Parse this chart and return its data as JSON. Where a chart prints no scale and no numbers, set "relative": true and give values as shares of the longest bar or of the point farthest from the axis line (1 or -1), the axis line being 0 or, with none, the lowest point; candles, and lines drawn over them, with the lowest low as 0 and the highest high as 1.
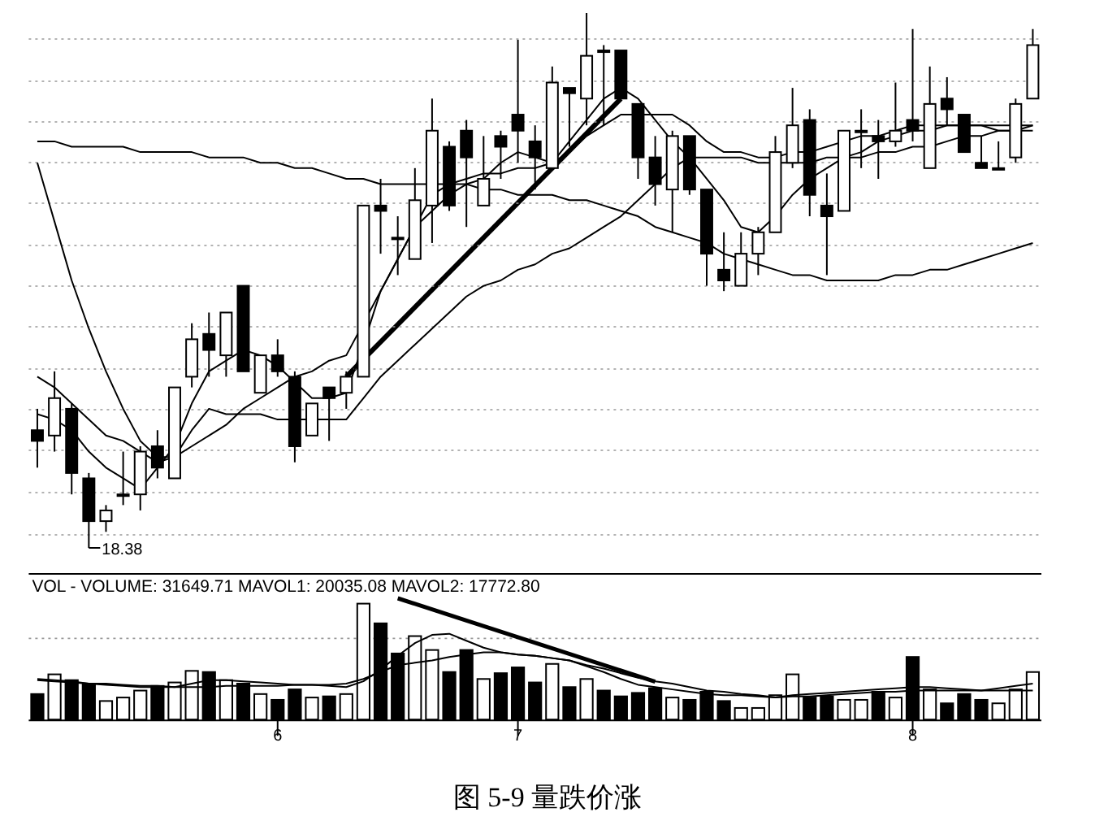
{
  "chart_data": [
    {
      "type": "candlestick",
      "relative": true,
      "grid": "y",
      "tick_labels": false,
      "categories": [
        null,
        null,
        null,
        null,
        null,
        null,
        null,
        null,
        null,
        null,
        null,
        null,
        null,
        null,
        null,
        null,
        null,
        null,
        null,
        null,
        null,
        null,
        null,
        null,
        null,
        null,
        null,
        null,
        null,
        null,
        null,
        null,
        null,
        null,
        null,
        null,
        null,
        null,
        null,
        null,
        null,
        null,
        null,
        null,
        null,
        null,
        null,
        null,
        null,
        null,
        null,
        null,
        null,
        null,
        null,
        null,
        null,
        null,
        null
      ],
      "ohlc": [
        [
          0.22,
          0.26,
          0.15,
          0.2
        ],
        [
          0.21,
          0.33,
          0.18,
          0.28
        ],
        [
          0.26,
          0.27,
          0.1,
          0.14
        ],
        [
          0.13,
          0.14,
          0,
          0.05
        ],
        [
          0.05,
          0.08,
          0.03,
          0.07
        ],
        [
          0.1,
          0.18,
          0.08,
          0.1
        ],
        [
          0.1,
          0.19,
          0.07,
          0.18
        ],
        [
          0.19,
          0.22,
          0.13,
          0.15
        ],
        [
          0.13,
          0.3,
          0.13,
          0.3
        ],
        [
          0.32,
          0.42,
          0.3,
          0.39
        ],
        [
          0.4,
          0.44,
          0.32,
          0.37
        ],
        [
          0.36,
          0.44,
          0.32,
          0.44
        ],
        [
          0.49,
          0.49,
          0.33,
          0.33
        ],
        [
          0.29,
          0.36,
          0.29,
          0.36
        ],
        [
          0.36,
          0.39,
          0.32,
          0.33
        ],
        [
          0.32,
          0.33,
          0.16,
          0.19
        ],
        [
          0.21,
          0.27,
          0.21,
          0.27
        ],
        [
          0.3,
          0.3,
          0.2,
          0.28
        ],
        [
          0.29,
          0.33,
          0.26,
          0.32
        ],
        [
          0.32,
          0.64,
          0.32,
          0.64
        ],
        [
          0.64,
          0.69,
          0.55,
          0.63
        ],
        [
          0.58,
          0.62,
          0.51,
          0.58
        ],
        [
          0.54,
          0.71,
          0.54,
          0.65
        ],
        [
          0.64,
          0.84,
          0.57,
          0.78
        ],
        [
          0.75,
          0.76,
          0.63,
          0.64
        ],
        [
          0.78,
          0.8,
          0.6,
          0.73
        ],
        [
          0.64,
          0.77,
          0.64,
          0.69
        ],
        [
          0.77,
          0.78,
          0.69,
          0.75
        ],
        [
          0.81,
          0.95,
          0.72,
          0.78
        ],
        [
          0.76,
          0.79,
          0.67,
          0.73
        ],
        [
          0.71,
          0.9,
          0.71,
          0.87
        ],
        [
          0.86,
          0.86,
          0.75,
          0.85
        ],
        [
          0.84,
          1,
          0.79,
          0.92
        ],
        [
          0.93,
          0.94,
          0.79,
          0.93
        ],
        [
          0.93,
          0.93,
          0.84,
          0.84
        ],
        [
          0.83,
          0.83,
          0.69,
          0.73
        ],
        [
          0.73,
          0.77,
          0.64,
          0.68
        ],
        [
          0.67,
          0.78,
          0.59,
          0.77
        ],
        [
          0.77,
          0.77,
          0.66,
          0.67
        ],
        [
          0.67,
          0.67,
          0.49,
          0.55
        ],
        [
          0.52,
          0.59,
          0.48,
          0.5
        ],
        [
          0.49,
          0.59,
          0.49,
          0.55
        ],
        [
          0.55,
          0.6,
          0.51,
          0.59
        ],
        [
          0.59,
          0.77,
          0.59,
          0.74
        ],
        [
          0.72,
          0.86,
          0.71,
          0.79
        ],
        [
          0.8,
          0.82,
          0.62,
          0.66
        ],
        [
          0.64,
          0.7,
          0.51,
          0.62
        ],
        [
          0.63,
          0.78,
          0.63,
          0.78
        ],
        [
          0.78,
          0.82,
          0.71,
          0.78
        ],
        [
          0.77,
          0.8,
          0.69,
          0.76
        ],
        [
          0.76,
          0.87,
          0.75,
          0.78
        ],
        [
          0.8,
          0.97,
          0.76,
          0.78
        ],
        [
          0.71,
          0.9,
          0.71,
          0.83
        ],
        [
          0.84,
          0.88,
          0.79,
          0.82
        ],
        [
          0.81,
          0.81,
          0.74,
          0.74
        ],
        [
          0.72,
          0.77,
          0.71,
          0.71
        ],
        [
          0.71,
          0.76,
          0.71,
          0.71
        ],
        [
          0.73,
          0.84,
          0.72,
          0.83
        ],
        [
          0.84,
          0.97,
          0.84,
          0.94
        ]
      ],
      "series": [
        {
          "type": "line",
          "color": "#000000",
          "values": [
            0.76,
            0.76,
            0.75,
            0.75,
            0.75,
            0.75,
            0.74,
            0.74,
            0.74,
            0.74,
            0.73,
            0.73,
            0.73,
            0.72,
            0.72,
            0.71,
            0.71,
            0.7,
            0.69,
            0.69,
            0.68,
            0.68,
            0.68,
            0.68,
            0.68,
            0.68,
            0.67,
            0.67,
            0.66,
            0.66,
            0.66,
            0.65,
            0.65,
            0.64,
            0.63,
            0.62,
            0.6,
            0.59,
            0.58,
            0.57,
            0.55,
            0.54,
            0.53,
            0.52,
            0.51,
            0.51,
            0.5,
            0.5,
            0.5,
            0.5,
            0.51,
            0.51,
            0.52,
            0.52,
            0.53,
            0.54,
            0.55,
            0.56,
            0.57
          ]
        },
        {
          "type": "line",
          "color": "#000000",
          "values": [
            0.72,
            0.61,
            0.5,
            0.41,
            0.33,
            0.26,
            0.2,
            0.17,
            0.17,
            0.22,
            0.26,
            0.25,
            0.25,
            0.25,
            0.24,
            0.24,
            0.24,
            0.24,
            0.24,
            0.28,
            0.32,
            0.35,
            0.38,
            0.41,
            0.44,
            0.47,
            0.49,
            0.5,
            0.52,
            0.53,
            0.55,
            0.56,
            0.58,
            0.6,
            0.62,
            0.65,
            0.68,
            0.71,
            0.73,
            0.73,
            0.73,
            0.73,
            0.72,
            0.72,
            0.72,
            0.72,
            0.73,
            0.73,
            0.73,
            0.74,
            0.74,
            0.75,
            0.75,
            0.76,
            0.77,
            0.77,
            0.78,
            0.78,
            0.79
          ]
        },
        {
          "type": "line",
          "color": "#000000",
          "values": [
            0.32,
            0.3,
            0.27,
            0.24,
            0.21,
            0.2,
            0.18,
            0.16,
            0.17,
            0.19,
            0.21,
            0.23,
            0.26,
            0.28,
            0.3,
            0.32,
            0.33,
            0.35,
            0.36,
            0.42,
            0.48,
            0.54,
            0.6,
            0.66,
            0.68,
            0.69,
            0.7,
            0.7,
            0.71,
            0.71,
            0.72,
            0.74,
            0.77,
            0.79,
            0.81,
            0.81,
            0.81,
            0.81,
            0.79,
            0.76,
            0.74,
            0.74,
            0.73,
            0.73,
            0.74,
            0.74,
            0.75,
            0.76,
            0.77,
            0.77,
            0.78,
            0.79,
            0.79,
            0.79,
            0.79,
            0.79,
            0.79,
            0.79,
            0.79
          ]
        },
        {
          "type": "line",
          "color": "#000000",
          "values": [
            0.25,
            0.24,
            0.22,
            0.18,
            0.15,
            0.13,
            0.11,
            0.15,
            0.19,
            0.27,
            0.33,
            0.35,
            0.37,
            0.36,
            0.34,
            0.31,
            0.28,
            0.28,
            0.29,
            0.38,
            0.48,
            0.54,
            0.6,
            0.63,
            0.66,
            0.68,
            0.69,
            0.72,
            0.74,
            0.73,
            0.72,
            0.76,
            0.8,
            0.84,
            0.86,
            0.84,
            0.8,
            0.76,
            0.73,
            0.69,
            0.65,
            0.6,
            0.59,
            0.62,
            0.66,
            0.69,
            0.71,
            0.73,
            0.74,
            0.76,
            0.77,
            0.78,
            0.78,
            0.79,
            0.79,
            0.79,
            0.78,
            0.78,
            0.78
          ]
        }
      ],
      "annotations": [
        "18.38"
      ]
    },
    {
      "type": "bar",
      "relative": true,
      "tick_labels": "x",
      "ref_lines": [
        {
          "axis": "y",
          "value": 0.7,
          "color": "#999999",
          "line_style": "dotted"
        }
      ],
      "title": "VOL -   VOLUME: 31649.71  MAVOL1: 20035.08  MAVOL2: 17772.80",
      "categories": [
        null,
        null,
        null,
        null,
        null,
        null,
        null,
        null,
        null,
        null,
        null,
        null,
        null,
        null,
        "6",
        null,
        null,
        null,
        null,
        null,
        null,
        null,
        null,
        null,
        null,
        null,
        null,
        null,
        "7",
        null,
        null,
        null,
        null,
        null,
        null,
        null,
        null,
        null,
        null,
        null,
        null,
        null,
        null,
        null,
        null,
        null,
        null,
        null,
        null,
        null,
        null,
        "8",
        null,
        null,
        null,
        null,
        null,
        null,
        null
      ],
      "series": [
        {
          "type": "bar",
          "values": [
            0.22,
            0.39,
            0.34,
            0.31,
            0.16,
            0.19,
            0.25,
            0.29,
            0.32,
            0.42,
            0.41,
            0.34,
            0.31,
            0.22,
            0.17,
            0.26,
            0.19,
            0.2,
            0.22,
            1,
            0.83,
            0.57,
            0.72,
            0.6,
            0.41,
            0.6,
            0.35,
            0.4,
            0.45,
            0.32,
            0.48,
            0.28,
            0.35,
            0.25,
            0.2,
            0.23,
            0.27,
            0.19,
            0.17,
            0.24,
            0.16,
            0.1,
            0.1,
            0.21,
            0.39,
            0.19,
            0.2,
            0.17,
            0.17,
            0.24,
            0.19,
            0.54,
            0.26,
            0.14,
            0.22,
            0.17,
            0.14,
            0.26,
            0.41
          ],
          "colors": [
            "#000000",
            "#ffffff",
            "#000000",
            "#000000",
            "#ffffff",
            "#ffffff",
            "#ffffff",
            "#000000",
            "#ffffff",
            "#ffffff",
            "#000000",
            "#ffffff",
            "#000000",
            "#ffffff",
            "#000000",
            "#000000",
            "#ffffff",
            "#000000",
            "#ffffff",
            "#ffffff",
            "#000000",
            "#000000",
            "#ffffff",
            "#ffffff",
            "#000000",
            "#000000",
            "#ffffff",
            "#000000",
            "#000000",
            "#000000",
            "#ffffff",
            "#000000",
            "#ffffff",
            "#000000",
            "#000000",
            "#000000",
            "#000000",
            "#ffffff",
            "#000000",
            "#000000",
            "#000000",
            "#ffffff",
            "#ffffff",
            "#ffffff",
            "#ffffff",
            "#000000",
            "#000000",
            "#ffffff",
            "#ffffff",
            "#000000",
            "#ffffff",
            "#000000",
            "#ffffff",
            "#000000",
            "#000000",
            "#000000",
            "#ffffff",
            "#ffffff",
            "#ffffff"
          ]
        },
        {
          "type": "line",
          "color": "#000000",
          "values": [
            0.34,
            0.33,
            0.32,
            0.31,
            0.31,
            0.3,
            0.29,
            0.29,
            0.28,
            0.31,
            0.34,
            0.34,
            0.33,
            0.32,
            0.31,
            0.3,
            0.3,
            0.29,
            0.28,
            0.33,
            0.43,
            0.55,
            0.66,
            0.73,
            0.74,
            0.68,
            0.62,
            0.58,
            0.56,
            0.55,
            0.53,
            0.51,
            0.46,
            0.41,
            0.35,
            0.3,
            0.28,
            0.26,
            0.24,
            0.22,
            0.21,
            0.21,
            0.2,
            0.19,
            0.21,
            0.22,
            0.23,
            0.24,
            0.25,
            0.26,
            0.27,
            0.28,
            0.28,
            0.27,
            0.26,
            0.25,
            0.27,
            0.29,
            0.31
          ]
        },
        {
          "type": "line",
          "color": "#000000",
          "values": [
            0.35,
            0.34,
            0.33,
            0.31,
            0.3,
            0.29,
            0.28,
            0.28,
            0.28,
            0.28,
            0.28,
            0.29,
            0.29,
            0.29,
            0.29,
            0.3,
            0.3,
            0.3,
            0.31,
            0.35,
            0.41,
            0.47,
            0.49,
            0.51,
            0.54,
            0.56,
            0.58,
            0.58,
            0.56,
            0.55,
            0.53,
            0.51,
            0.47,
            0.44,
            0.4,
            0.36,
            0.33,
            0.31,
            0.28,
            0.25,
            0.24,
            0.22,
            0.21,
            0.19,
            0.2,
            0.2,
            0.21,
            0.22,
            0.23,
            0.24,
            0.24,
            0.25,
            0.25,
            0.25,
            0.25,
            0.25,
            0.25,
            0.25,
            0.25
          ]
        }
      ],
      "annotations": [
        "图 5-9  量跌价涨"
      ]
    }
  ]
}
